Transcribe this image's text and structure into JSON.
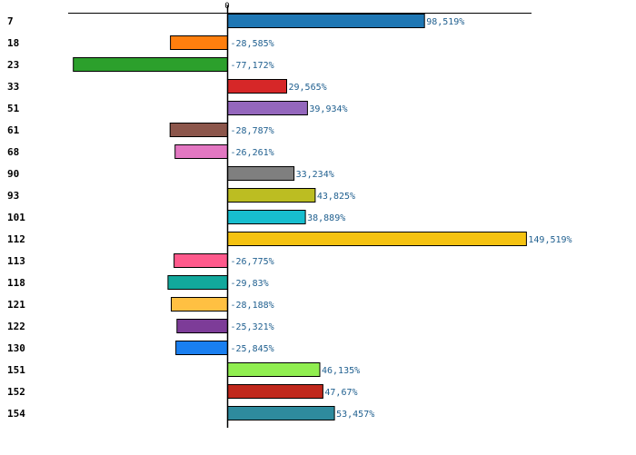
{
  "chart_data": {
    "type": "bar",
    "orientation": "horizontal",
    "title": "",
    "xlabel": "",
    "ylabel": "",
    "zero_tick_label": "0",
    "xlim": [
      -100,
      155
    ],
    "grid": false,
    "categories": [
      "7",
      "18",
      "23",
      "33",
      "51",
      "61",
      "68",
      "90",
      "93",
      "101",
      "112",
      "113",
      "118",
      "121",
      "122",
      "130",
      "151",
      "152",
      "154"
    ],
    "values": [
      98.519,
      -28.585,
      -77.172,
      29.565,
      39.934,
      -28.787,
      -26.261,
      33.234,
      43.825,
      38.889,
      149.519,
      -26.775,
      -29.83,
      -28.188,
      -25.321,
      -25.845,
      46.135,
      47.67,
      53.457
    ],
    "value_labels": [
      "98,519%",
      "-28,585%",
      "-77,172%",
      "29,565%",
      "39,934%",
      "-28,787%",
      "-26,261%",
      "33,234%",
      "43,825%",
      "38,889%",
      "149,519%",
      "-26,775%",
      "-29,83%",
      "-28,188%",
      "-25,321%",
      "-25,845%",
      "46,135%",
      "47,67%",
      "53,457%"
    ],
    "colors": [
      "#1f77b4",
      "#ff7f0e",
      "#2ca02c",
      "#d62728",
      "#9467bd",
      "#8c564b",
      "#e377c2",
      "#7f7f7f",
      "#bcbd22",
      "#17becf",
      "#f5c211",
      "#ff5a8c",
      "#12a89c",
      "#ffc042",
      "#7d3c98",
      "#1a7ff0",
      "#90ee50",
      "#c0281c",
      "#2e8b9e"
    ]
  }
}
